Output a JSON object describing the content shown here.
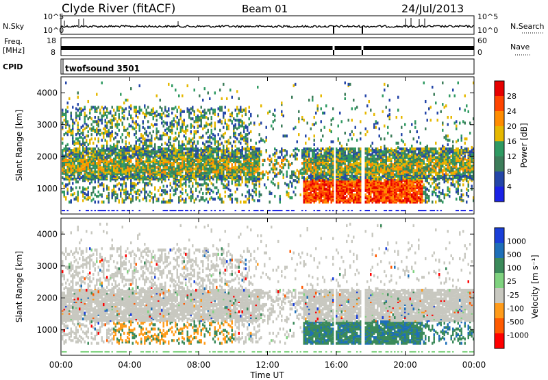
{
  "header": {
    "station": "Clyde River (fitACF)",
    "beam": "Beam 01",
    "date": "24/Jul/2013"
  },
  "panels": {
    "nsky": {
      "label": "N.Sky",
      "right_label": "N.Search",
      "left_ticks": [
        "10^5",
        "10^0"
      ],
      "right_ticks": [
        "10^5",
        "10^0"
      ]
    },
    "freq": {
      "label_line1": "Freq.",
      "label_line2": "[MHz]",
      "right_label": "Nave",
      "left_ticks": [
        "18",
        "8"
      ],
      "right_ticks": [
        "60",
        "0"
      ]
    },
    "cpid": {
      "label": "CPID",
      "program": "twofsound 3501"
    }
  },
  "colors": {
    "power_scale": [
      "#1a22e6",
      "#2446a8",
      "#3d7d5a",
      "#2f9a62",
      "#e6b800",
      "#ff8c00",
      "#ff4400",
      "#e60000"
    ],
    "velocity_scale": [
      "#ff0000",
      "#ff5a00",
      "#ff9b1a",
      "#c8c8c0",
      "#7fd27f",
      "#3b8a5a",
      "#1e6fb8",
      "#1a3fd8"
    ]
  },
  "chart_data": [
    {
      "type": "heatmap",
      "name": "power",
      "ylabel": "Slant Range [km]",
      "yticks": [
        1000,
        2000,
        3000,
        4000
      ],
      "ylim": [
        200,
        4500
      ],
      "xlim": [
        "00:00",
        "24:00"
      ],
      "colorbar": {
        "label": "Power [dB]",
        "ticks": [
          "28",
          "24",
          "20",
          "16",
          "12",
          "8",
          "4"
        ],
        "range": [
          0,
          30
        ]
      }
    },
    {
      "type": "heatmap",
      "name": "velocity",
      "ylabel": "Slant Range [km]",
      "yticks": [
        1000,
        2000,
        3000,
        4000
      ],
      "ylim": [
        200,
        4500
      ],
      "xlim": [
        "00:00",
        "24:00"
      ],
      "colorbar": {
        "label": "Velocity [m s⁻¹]",
        "ticks": [
          "1000",
          "500",
          "100",
          "25",
          "-25",
          "-100",
          "-500",
          "-1000"
        ]
      }
    }
  ],
  "time_axis": {
    "ticks": [
      "00:00",
      "04:00",
      "08:00",
      "12:00",
      "16:00",
      "20:00",
      "00:00"
    ],
    "label": "Time UT"
  }
}
